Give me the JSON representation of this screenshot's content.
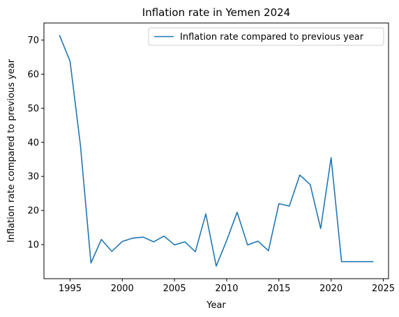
{
  "chart_data": {
    "type": "line",
    "title": "Inflation rate in Yemen 2024",
    "xlabel": "Year",
    "ylabel": "Inflation rate compared to previous year",
    "xlim": [
      1992.5,
      2025.5
    ],
    "ylim": [
      0.0,
      75.0
    ],
    "xticks": [
      1995,
      2000,
      2005,
      2010,
      2015,
      2020,
      2025
    ],
    "yticks": [
      10,
      20,
      30,
      40,
      50,
      60,
      70
    ],
    "grid": false,
    "legend_position": "top-right",
    "series": [
      {
        "name": "Inflation rate compared to previous year",
        "color": "#1f77b4",
        "x": [
          1994,
          1995,
          1996,
          1997,
          1998,
          1999,
          2000,
          2001,
          2002,
          2003,
          2004,
          2005,
          2006,
          2007,
          2008,
          2009,
          2010,
          2011,
          2012,
          2013,
          2014,
          2015,
          2016,
          2017,
          2018,
          2019,
          2020,
          2021,
          2022,
          2023,
          2024
        ],
        "y": [
          71.3,
          63.8,
          39.0,
          4.6,
          11.5,
          8.0,
          10.9,
          11.9,
          12.2,
          10.8,
          12.5,
          9.9,
          10.8,
          7.9,
          19.0,
          3.7,
          11.2,
          19.5,
          9.9,
          11.0,
          8.2,
          22.0,
          21.3,
          30.4,
          27.6,
          14.7,
          35.5,
          5.0,
          5.0,
          5.0,
          5.0
        ]
      }
    ]
  }
}
